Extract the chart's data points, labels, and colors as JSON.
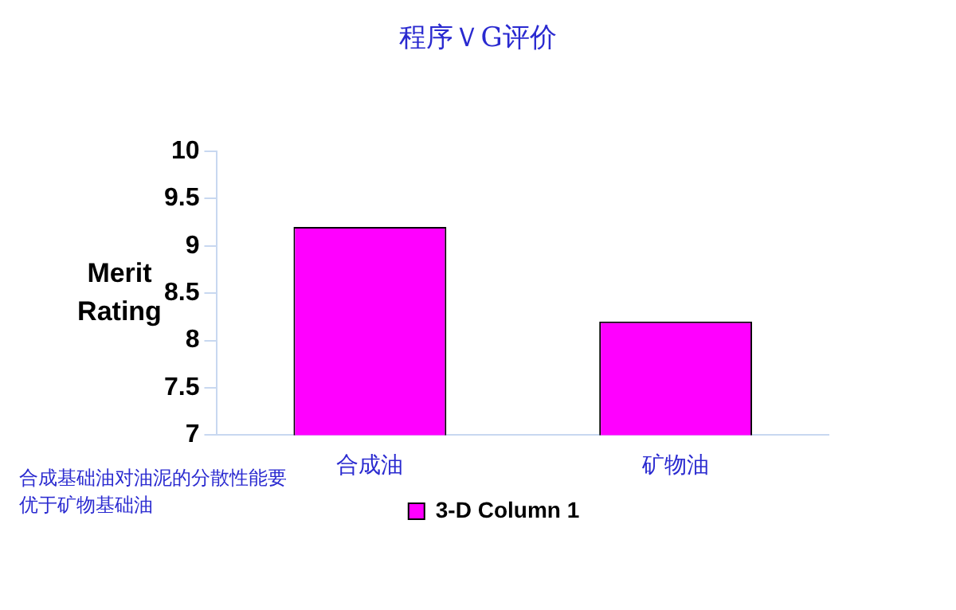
{
  "chart_data": {
    "type": "bar",
    "title": "程序ＶG评价",
    "ylabel": "Merit Rating",
    "categories": [
      "合成油",
      "矿物油"
    ],
    "series": [
      {
        "name": "3-D Column 1",
        "color": "#ff00ff",
        "values": [
          9.2,
          8.2
        ]
      }
    ],
    "ylim": [
      7,
      10
    ],
    "yticks": [
      7,
      7.5,
      8,
      8.5,
      9,
      9.5,
      10
    ],
    "grid": false,
    "legend": "bottom",
    "annotations": [
      "合成基础油对油泥的分散性能要优于矿物基础油"
    ]
  }
}
